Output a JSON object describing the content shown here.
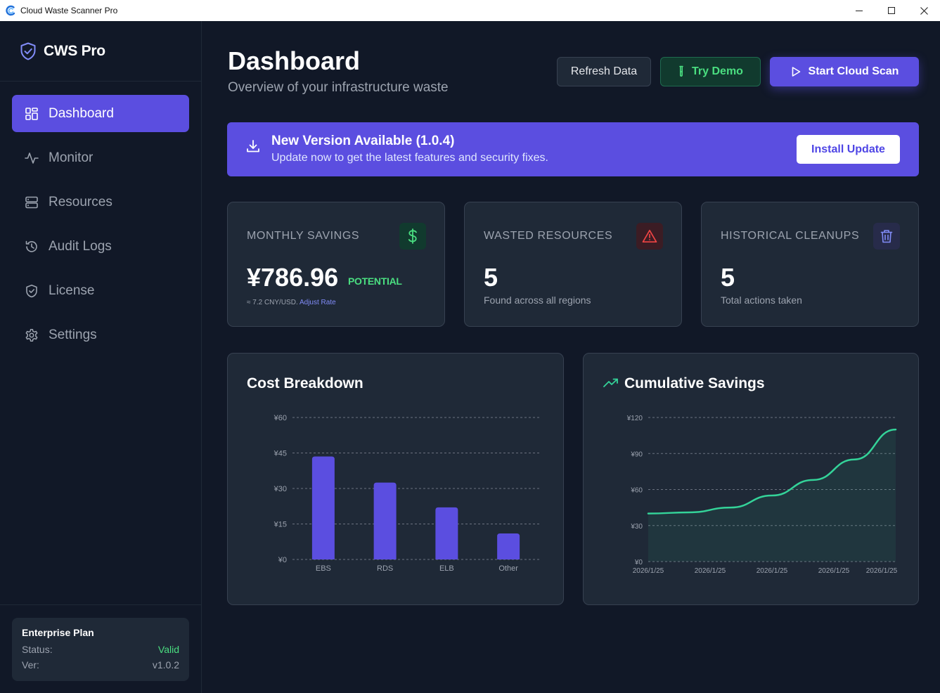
{
  "window": {
    "title": "Cloud Waste Scanner Pro"
  },
  "sidebar": {
    "brand": "CWS Pro",
    "items": [
      {
        "label": "Dashboard",
        "icon": "grid-icon",
        "active": true
      },
      {
        "label": "Monitor",
        "icon": "activity-icon",
        "active": false
      },
      {
        "label": "Resources",
        "icon": "server-icon",
        "active": false
      },
      {
        "label": "Audit Logs",
        "icon": "history-icon",
        "active": false
      },
      {
        "label": "License",
        "icon": "shield-check-icon",
        "active": false
      },
      {
        "label": "Settings",
        "icon": "gear-icon",
        "active": false
      }
    ],
    "plan": {
      "title": "Enterprise Plan",
      "status_label": "Status:",
      "status_value": "Valid",
      "version_label": "Ver:",
      "version_value": "v1.0.2"
    }
  },
  "header": {
    "title": "Dashboard",
    "subtitle": "Overview of your infrastructure waste",
    "refresh_label": "Refresh Data",
    "demo_label": "Try Demo",
    "scan_label": "Start Cloud Scan"
  },
  "update_banner": {
    "title": "New Version Available (1.0.4)",
    "text": "Update now to get the latest features and security fixes.",
    "button_label": "Install Update"
  },
  "stats": {
    "savings": {
      "label": "MONTHLY SAVINGS",
      "value": "¥786.96",
      "badge": "POTENTIAL",
      "rate_text": "≈ 7.2 CNY/USD.",
      "rate_link": "Adjust Rate"
    },
    "wasted": {
      "label": "WASTED RESOURCES",
      "value": "5",
      "sub": "Found across all regions"
    },
    "cleanups": {
      "label": "HISTORICAL CLEANUPS",
      "value": "5",
      "sub": "Total actions taken"
    }
  },
  "colors": {
    "accent": "#5b4ee0",
    "success": "#4ade80",
    "danger": "#ef4444",
    "line": "#34d399"
  },
  "chart_data": [
    {
      "type": "bar",
      "title": "Cost Breakdown",
      "categories": [
        "EBS",
        "RDS",
        "ELB",
        "Other"
      ],
      "values": [
        43.5,
        32.5,
        22,
        11
      ],
      "ylim": [
        0,
        60
      ],
      "yticks": [
        "¥0",
        "¥15",
        "¥30",
        "¥45",
        "¥60"
      ],
      "grid": true
    },
    {
      "type": "area",
      "title": "Cumulative Savings",
      "x_labels": [
        "2026/1/25",
        "2026/1/25",
        "2026/1/25",
        "2026/1/25",
        "2026/1/25"
      ],
      "values": [
        40,
        41,
        45,
        55,
        68,
        85,
        110
      ],
      "ylim": [
        0,
        120
      ],
      "yticks": [
        "¥0",
        "¥30",
        "¥60",
        "¥90",
        "¥120"
      ],
      "grid": true
    }
  ]
}
